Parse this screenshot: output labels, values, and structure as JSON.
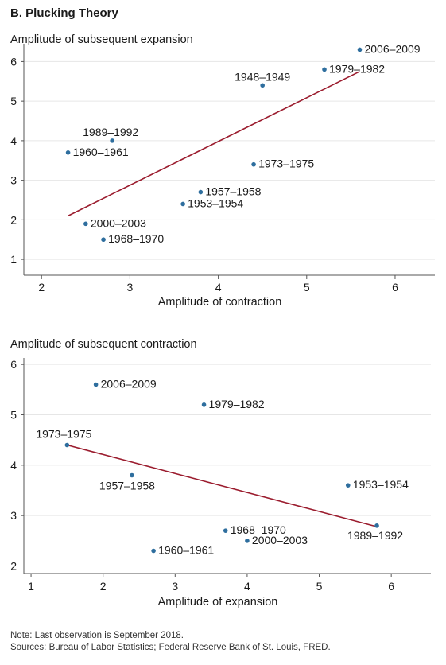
{
  "figure_title": "B. Plucking Theory",
  "notes": [
    "Note: Last observation is September 2018.",
    "Sources: Bureau of Labor Statistics; Federal Reserve Bank of St. Louis, FRED."
  ],
  "colors": {
    "point": "#2e6e9e",
    "trend": "#9b1c2e",
    "axis": "#555555",
    "grid": "#e6e6e6"
  },
  "chart_data": [
    {
      "type": "scatter",
      "ylabel": "Amplitude of subsequent expansion",
      "xlabel": "Amplitude of contraction",
      "xlim": [
        1.8,
        6.45
      ],
      "ylim": [
        0.6,
        6.35
      ],
      "xticks": [
        2,
        3,
        4,
        5,
        6
      ],
      "yticks": [
        1,
        2,
        3,
        4,
        5,
        6
      ],
      "grid": "horizontal",
      "points": [
        {
          "label": "2006–2009",
          "x": 5.6,
          "y": 6.3
        },
        {
          "label": "1979–1982",
          "x": 5.2,
          "y": 5.8
        },
        {
          "label": "1948–1949",
          "x": 4.5,
          "y": 5.4
        },
        {
          "label": "1989–1992",
          "x": 2.8,
          "y": 4.0
        },
        {
          "label": "1960–1961",
          "x": 2.3,
          "y": 3.7
        },
        {
          "label": "1973–1975",
          "x": 4.4,
          "y": 3.4
        },
        {
          "label": "1957–1958",
          "x": 3.8,
          "y": 2.7
        },
        {
          "label": "1953–1954",
          "x": 3.6,
          "y": 2.4
        },
        {
          "label": "2000–2003",
          "x": 2.5,
          "y": 1.9
        },
        {
          "label": "1968–1970",
          "x": 2.7,
          "y": 1.5
        }
      ],
      "trendline": {
        "x": [
          2.3,
          5.6
        ],
        "y": [
          2.1,
          5.75
        ]
      }
    },
    {
      "type": "scatter",
      "ylabel": "Amplitude of subsequent contraction",
      "xlabel": "Amplitude of expansion",
      "xlim": [
        0.9,
        6.55
      ],
      "ylim": [
        1.85,
        6.05
      ],
      "xticks": [
        1,
        2,
        3,
        4,
        5,
        6
      ],
      "yticks": [
        2,
        3,
        4,
        5,
        6
      ],
      "grid": "horizontal",
      "points": [
        {
          "label": "2006–2009",
          "x": 1.9,
          "y": 5.6
        },
        {
          "label": "1979–1982",
          "x": 3.4,
          "y": 5.2
        },
        {
          "label": "1973–1975",
          "x": 1.5,
          "y": 4.4
        },
        {
          "label": "1957–1958",
          "x": 2.4,
          "y": 3.8
        },
        {
          "label": "1953–1954",
          "x": 5.4,
          "y": 3.6
        },
        {
          "label": "1989–1992",
          "x": 5.8,
          "y": 2.8
        },
        {
          "label": "1968–1970",
          "x": 3.7,
          "y": 2.7
        },
        {
          "label": "2000–2003",
          "x": 4.0,
          "y": 2.5
        },
        {
          "label": "1960–1961",
          "x": 2.7,
          "y": 2.3
        }
      ],
      "trendline": {
        "x": [
          1.5,
          5.8
        ],
        "y": [
          4.4,
          2.78
        ]
      }
    }
  ]
}
